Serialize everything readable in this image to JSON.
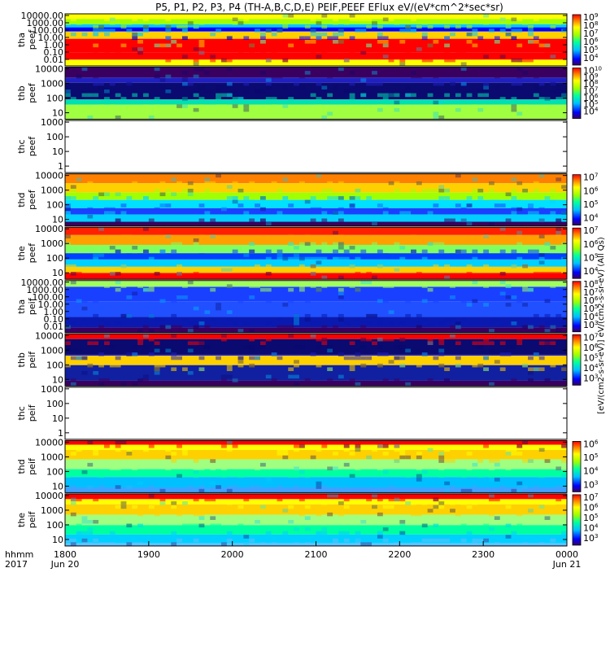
{
  "chart_data": {
    "type": "heatmap",
    "title": "P5, P1, P2, P3, P4 (TH-A,B,C,D,E) PEIF,PEEF EFlux eV/(eV*cm^2*sec*sr)",
    "x_axis": {
      "row_labels": [
        "hhmm",
        "2017"
      ],
      "ticks": [
        {
          "label": "1800",
          "sub": "Jun 20"
        },
        {
          "label": "1900",
          "sub": ""
        },
        {
          "label": "2000",
          "sub": ""
        },
        {
          "label": "2100",
          "sub": ""
        },
        {
          "label": "2200",
          "sub": ""
        },
        {
          "label": "2300",
          "sub": ""
        },
        {
          "label": "0000",
          "sub": "Jun 21"
        }
      ],
      "range": [
        "2017-06-20 18:00",
        "2017-06-21 00:00"
      ]
    },
    "colorbar_unit": "[eV/(cm2-s-sr-eV)] eV/(cm2-s-sr-eV) (All Qs)",
    "panels": [
      {
        "probe": "tha",
        "product": "peef",
        "y_ticks": [
          "10000.00",
          "1000.00",
          "100.00",
          "10.00",
          "1.00",
          "0.10",
          "0.01"
        ],
        "colorbar": [
          "10^9",
          "10^8",
          "10^7",
          "10^6",
          "10^5",
          "10^4"
        ],
        "empty": false
      },
      {
        "probe": "thb",
        "product": "peef",
        "y_ticks": [
          "10000",
          "1000",
          "100",
          "10"
        ],
        "colorbar": [
          "10^10",
          "10^9",
          "10^8",
          "10^7",
          "10^6",
          "10^5",
          "10^4"
        ],
        "empty": false
      },
      {
        "probe": "thc",
        "product": "peef",
        "y_ticks": [
          "1000",
          "100",
          "10",
          "1"
        ],
        "colorbar": [],
        "empty": true
      },
      {
        "probe": "thd",
        "product": "peef",
        "y_ticks": [
          "10000",
          "1000",
          "100",
          "10"
        ],
        "colorbar": [
          "10^7",
          "10^6",
          "10^5",
          "10^4"
        ],
        "empty": false
      },
      {
        "probe": "the",
        "product": "peef",
        "y_ticks": [
          "10000",
          "1000",
          "100",
          "10"
        ],
        "colorbar": [
          "10^7",
          "10^6",
          "10^5",
          "10^4"
        ],
        "empty": false
      },
      {
        "probe": "tha",
        "product": "peif",
        "y_ticks": [
          "10000.00",
          "1000.00",
          "100.00",
          "10.00",
          "1.00",
          "0.10",
          "0.01"
        ],
        "colorbar": [
          "10^8",
          "10^7",
          "10^6",
          "10^5",
          "10^4",
          "10^3"
        ],
        "empty": false
      },
      {
        "probe": "thb",
        "product": "peif",
        "y_ticks": [
          "10000",
          "1000",
          "100",
          "10"
        ],
        "colorbar": [
          "10^7",
          "10^6",
          "10^5",
          "10^4",
          "10^3"
        ],
        "empty": false
      },
      {
        "probe": "thc",
        "product": "peif",
        "y_ticks": [
          "1000",
          "100",
          "10",
          "1"
        ],
        "colorbar": [],
        "empty": true
      },
      {
        "probe": "thd",
        "product": "peif",
        "y_ticks": [
          "10000",
          "1000",
          "100",
          "10"
        ],
        "colorbar": [
          "10^6",
          "10^5",
          "10^4",
          "10^3"
        ],
        "empty": false
      },
      {
        "probe": "the",
        "product": "peif",
        "y_ticks": [
          "10000",
          "1000",
          "100",
          "10"
        ],
        "colorbar": [
          "10^7",
          "10^6",
          "10^5",
          "10^4",
          "10^3"
        ],
        "empty": false
      }
    ]
  }
}
